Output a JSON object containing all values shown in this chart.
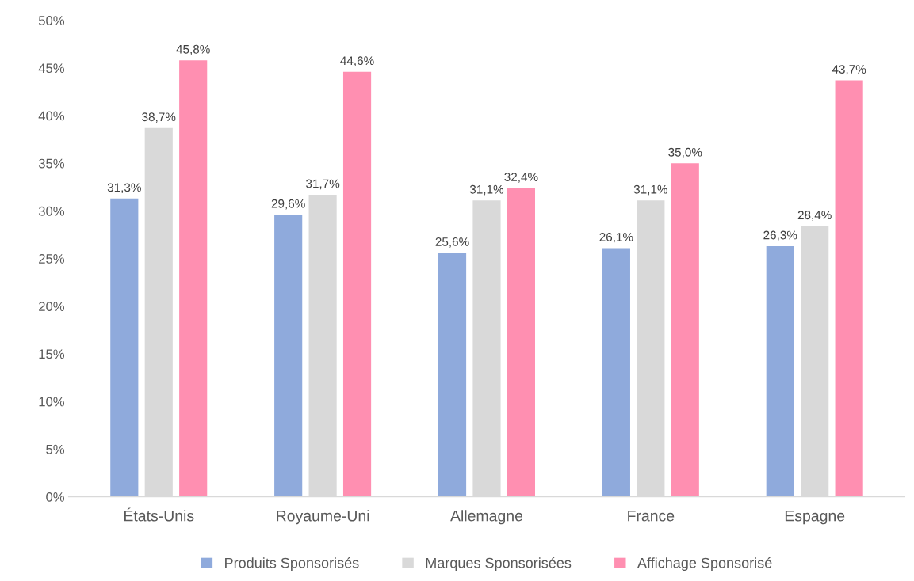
{
  "chart_data": {
    "type": "bar",
    "categories": [
      "États-Unis",
      "Royaume-Uni",
      "Allemagne",
      "France",
      "Espagne"
    ],
    "series": [
      {
        "name": "Produits Sponsorisés",
        "color": "#8faadc",
        "values": [
          31.3,
          29.6,
          25.6,
          26.1,
          26.3
        ],
        "value_labels": [
          "31,3%",
          "29,6%",
          "25,6%",
          "26,1%",
          "26,3%"
        ]
      },
      {
        "name": "Marques Sponsorisées",
        "color": "#d9d9d9",
        "values": [
          38.7,
          31.7,
          31.1,
          31.1,
          28.4
        ],
        "value_labels": [
          "38,7%",
          "31,7%",
          "31,1%",
          "31,1%",
          "28,4%"
        ]
      },
      {
        "name": "Affichage Sponsorisé",
        "color": "#ff8fb1",
        "values": [
          45.8,
          44.6,
          32.4,
          35.0,
          43.7
        ],
        "value_labels": [
          "45,8%",
          "44,6%",
          "32,4%",
          "35,0%",
          "43,7%"
        ]
      }
    ],
    "ylim": [
      0,
      50
    ],
    "yticks": [
      {
        "value": 0,
        "label": "0%"
      },
      {
        "value": 5,
        "label": "5%"
      },
      {
        "value": 10,
        "label": "10%"
      },
      {
        "value": 15,
        "label": "15%"
      },
      {
        "value": 20,
        "label": "20%"
      },
      {
        "value": 25,
        "label": "25%"
      },
      {
        "value": 30,
        "label": "30%"
      },
      {
        "value": 35,
        "label": "35%"
      },
      {
        "value": 40,
        "label": "40%"
      },
      {
        "value": 45,
        "label": "45%"
      },
      {
        "value": 50,
        "label": "50%"
      }
    ],
    "grid": false,
    "legend": "bottom"
  }
}
